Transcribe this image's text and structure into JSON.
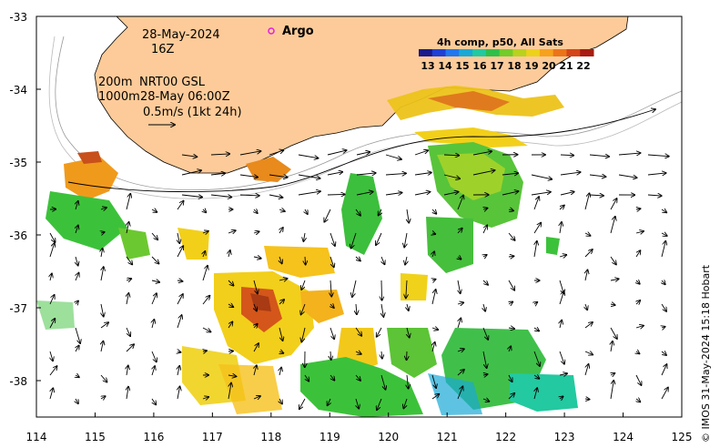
{
  "map": {
    "date": "28-May-2024",
    "hour": "16Z",
    "argo_label": "Argo",
    "contour_label_1": "200m",
    "contour_label_2": "1000m",
    "product_label": "NRT00 GSL",
    "velocity_time": "28-May 06:00Z",
    "scale_label": "0.5m/s (1kt 24h)",
    "colorbar_title": "4h comp, p50, All Sats",
    "colorbar_ticks": [
      "13",
      "14",
      "15",
      "16",
      "17",
      "18",
      "19",
      "20",
      "21",
      "22"
    ],
    "colorbar_colors": [
      "#1a1a8c",
      "#1f3fd6",
      "#2277ee",
      "#1aa9d6",
      "#23c9a0",
      "#2fc04a",
      "#72cc2a",
      "#b8d21e",
      "#ecd21a",
      "#f6a21c",
      "#ec7418",
      "#d4461a",
      "#a81c12"
    ],
    "x_ticks": [
      "114",
      "115",
      "116",
      "117",
      "118",
      "119",
      "120",
      "121",
      "122",
      "123",
      "124",
      "125"
    ],
    "y_ticks": [
      "-33",
      "-34",
      "-35",
      "-36",
      "-37",
      "-38"
    ],
    "credit": "© IMOS 31-May-2024 15:18 Hobart",
    "colors": {
      "land": "#fdcb99",
      "sst_warm": "#e07a1e",
      "sst_mid": "#ecc31a",
      "sst_green": "#3cc23a",
      "argo": "#e020e0"
    }
  }
}
